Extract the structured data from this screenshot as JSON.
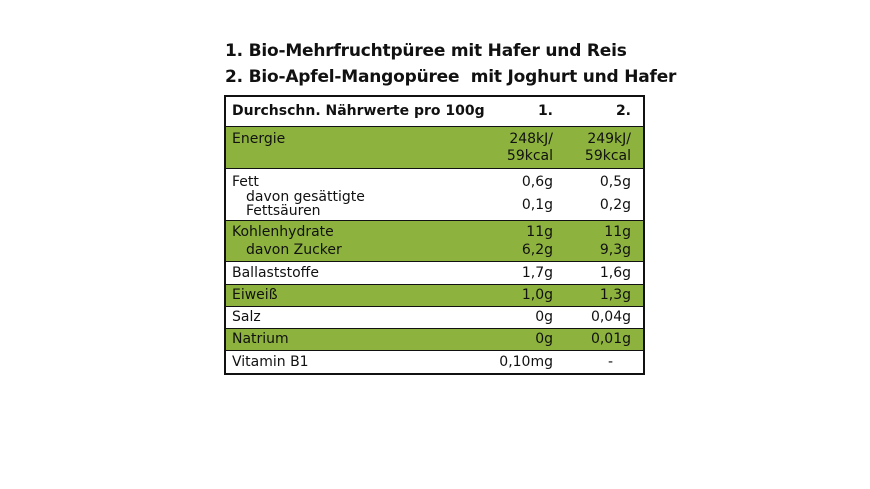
{
  "titles": [
    "1. Bio-Mehrfruchtpüree mit Hafer und Reis",
    "2. Bio-Apfel-Mangopüree  mit Joghurt und Hafer"
  ],
  "table": {
    "header": {
      "label": "Durchschn. Nährwerte pro 100g",
      "col1": "1.",
      "col2": "2."
    },
    "energie": {
      "label": "Energie",
      "col1_l1": "248kJ/",
      "col1_l2": "59kcal",
      "col2_l1": "249kJ/",
      "col2_l2": "59kcal"
    },
    "fett": {
      "label": "Fett",
      "col1": "0,6g",
      "col2": "0,5g"
    },
    "gesaettigt": {
      "label_l1": "davon gesättigte",
      "label_l2": "Fettsäuren",
      "col1": "0,1g",
      "col2": "0,2g"
    },
    "kohlenhydrate": {
      "label": "Kohlenhydrate",
      "col1": "11g",
      "col2": "11g"
    },
    "zucker": {
      "label": "davon Zucker",
      "col1": "6,2g",
      "col2": "9,3g"
    },
    "ballaststoffe": {
      "label": "Ballaststoffe",
      "col1": "1,7g",
      "col2": "1,6g"
    },
    "eiweiss": {
      "label": "Eiweiß",
      "col1": "1,0g",
      "col2": "1,3g"
    },
    "salz": {
      "label": "Salz",
      "col1": "0g",
      "col2": "0,04g"
    },
    "natrium": {
      "label": "Natrium",
      "col1": "0g",
      "col2": "0,01g"
    },
    "vitamin": {
      "label": "Vitamin B1",
      "col1": "0,10mg",
      "col2": "-"
    }
  },
  "colors": {
    "green": "#8db33e",
    "border": "#111111"
  }
}
